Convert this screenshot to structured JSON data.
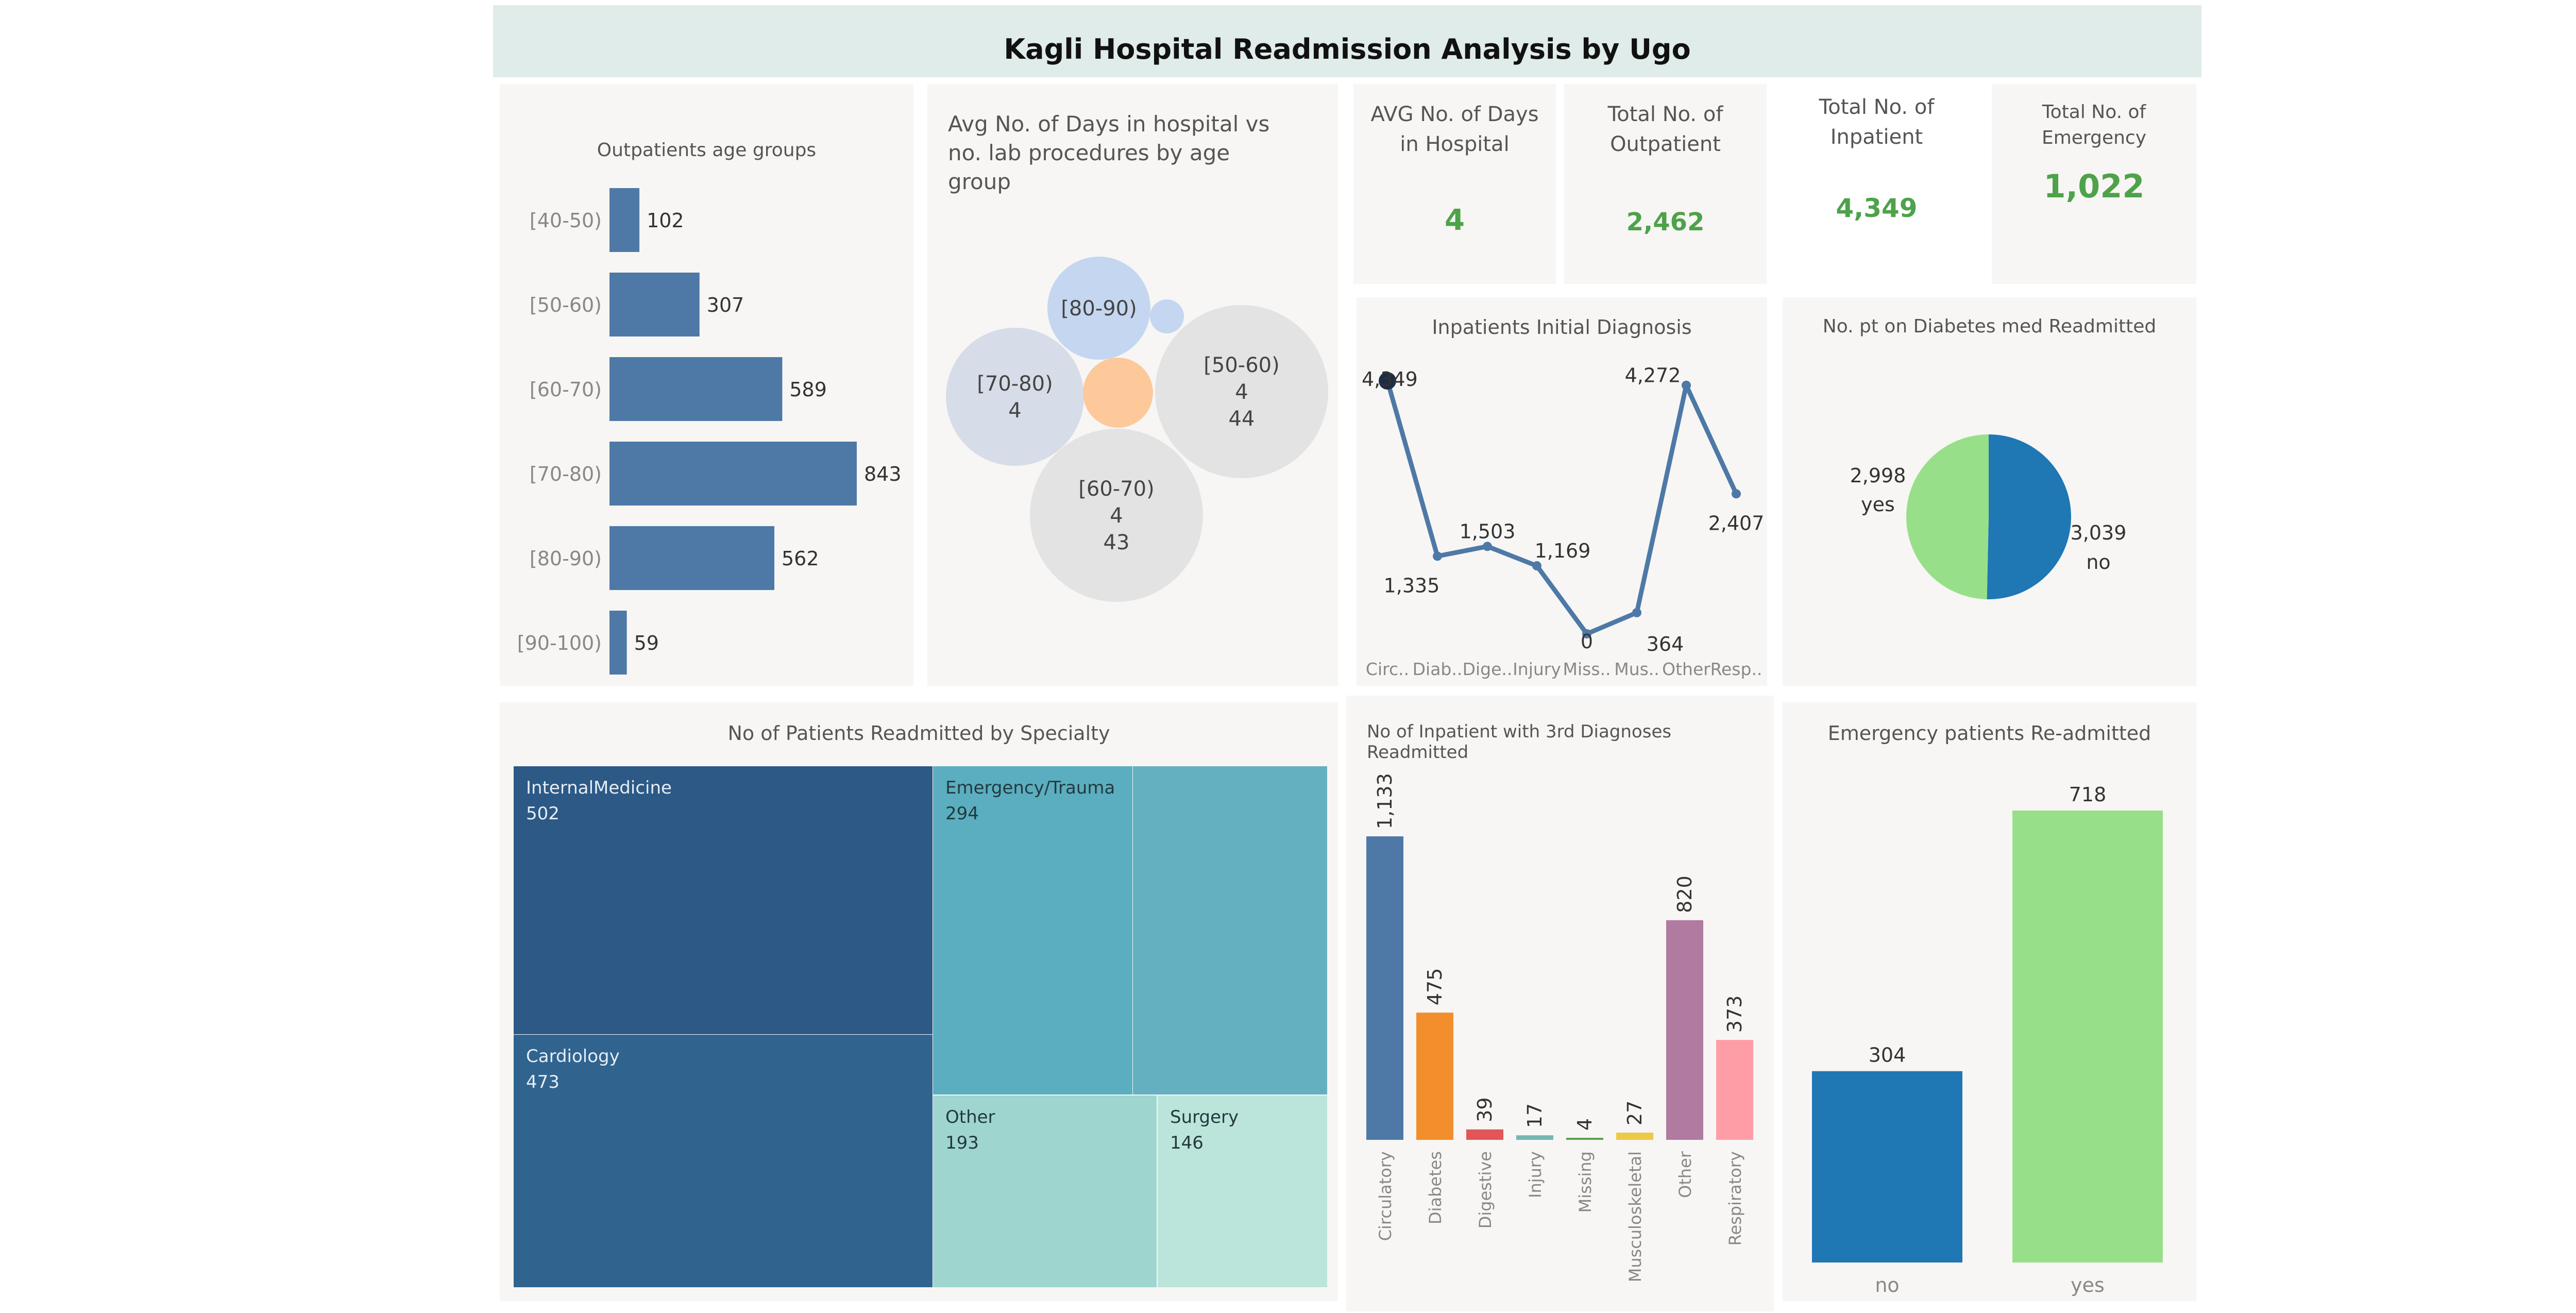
{
  "title": "Kagli Hospital Readmission Analysis by Ugo",
  "kpis": {
    "avg_days": {
      "label": "AVG No. of Days in Hospital",
      "value": "4"
    },
    "outpatient": {
      "label": "Total No. of Outpatient",
      "value": "2,462"
    },
    "inpatient": {
      "label": "Total No. of Inpatient",
      "value": "4,349"
    },
    "emergency": {
      "label": "Total No. of Emergency",
      "value": "1,022"
    }
  },
  "chart_data": [
    {
      "id": "age_groups",
      "type": "bar",
      "orientation": "horizontal",
      "title": "Outpatients age groups",
      "categories": [
        "[40-50)",
        "[50-60)",
        "[60-70)",
        "[70-80)",
        "[80-90)",
        "[90-100)"
      ],
      "values": [
        102,
        307,
        589,
        843,
        562,
        59
      ],
      "color": "#4e79a7"
    },
    {
      "id": "bubbles",
      "type": "scatter",
      "title": "Avg No. of Days in hospital vs no. lab procedures by age group",
      "bubbles": [
        {
          "label": "[80-90)",
          "lines": [
            "[80-90)"
          ],
          "color": "#c5d6f0"
        },
        {
          "label": "",
          "lines": [],
          "color": "#c5d6f0"
        },
        {
          "label": "[70-80)",
          "lines": [
            "[70-80)",
            "4"
          ],
          "color": "#d6dde8"
        },
        {
          "label": "",
          "lines": [],
          "color": "#fdc99a"
        },
        {
          "label": "[50-60)",
          "lines": [
            "[50-60)",
            "4",
            "44"
          ],
          "color": "#e3e3e3"
        },
        {
          "label": "[60-70)",
          "lines": [
            "[60-70)",
            "4",
            "43"
          ],
          "color": "#e3e3e3"
        }
      ]
    },
    {
      "id": "initial_diagnosis",
      "type": "line",
      "title": "Inpatients Initial Diagnosis",
      "categories": [
        "Circ..",
        "Diab..",
        "Dige..",
        "Injury",
        "Miss..",
        "Mus..",
        "Other",
        "Resp.."
      ],
      "values": [
        4349,
        1335,
        1503,
        1169,
        0,
        364,
        4272,
        2407
      ],
      "labels": [
        "4,349",
        "1,335",
        "1,503",
        "1,169",
        "0",
        "364",
        "4,272",
        "2,407"
      ],
      "ylim": [
        0,
        4500
      ],
      "color": "#4e79a7"
    },
    {
      "id": "diabetes_med",
      "type": "pie",
      "title": "No. pt on Diabetes med Readmitted",
      "slices": [
        {
          "name": "no",
          "value": 3039,
          "label": "3,039",
          "color": "#1f77b4"
        },
        {
          "name": "yes",
          "value": 2998,
          "label": "2,998",
          "color": "#98df8a"
        }
      ]
    },
    {
      "id": "specialty",
      "type": "heatmap",
      "title": "No of Patients Readmitted by Specialty",
      "cells": [
        {
          "name": "InternalMedicine",
          "value": "502",
          "color": "#2c5986"
        },
        {
          "name": "Cardiology",
          "value": "473",
          "color": "#30648f"
        },
        {
          "name": "Emergency/Trauma",
          "value": "294",
          "color": "#5aaebf"
        },
        {
          "name": "",
          "value": "",
          "color": "#64b0c1"
        },
        {
          "name": "Other",
          "value": "193",
          "color": "#9ed5cf"
        },
        {
          "name": "Surgery",
          "value": "146",
          "color": "#bbe5da"
        }
      ]
    },
    {
      "id": "third_diagnoses",
      "type": "bar",
      "title": "No of Inpatient with 3rd Diagnoses Readmitted",
      "categories": [
        "Circulatory",
        "Diabetes",
        "Digestive",
        "Injury",
        "Missing",
        "Musculoskeletal",
        "Other",
        "Respiratory"
      ],
      "values": [
        1133,
        475,
        39,
        17,
        4,
        27,
        820,
        373
      ],
      "labels": [
        "1,133",
        "475",
        "39",
        "17",
        "4",
        "27",
        "820",
        "373"
      ],
      "colors": [
        "#4e79a7",
        "#f28e2b",
        "#e15759",
        "#76b7b2",
        "#59a14f",
        "#edc948",
        "#b07aa1",
        "#ff9da7"
      ],
      "ylim": [
        0,
        1133
      ]
    },
    {
      "id": "emergency_readmitted",
      "type": "bar",
      "title": "Emergency patients Re-admitted",
      "categories": [
        "no",
        "yes"
      ],
      "values": [
        304,
        718
      ],
      "labels": [
        "304",
        "718"
      ],
      "colors": [
        "#1f77b4",
        "#98df8a"
      ],
      "ylim": [
        0,
        718
      ]
    }
  ]
}
